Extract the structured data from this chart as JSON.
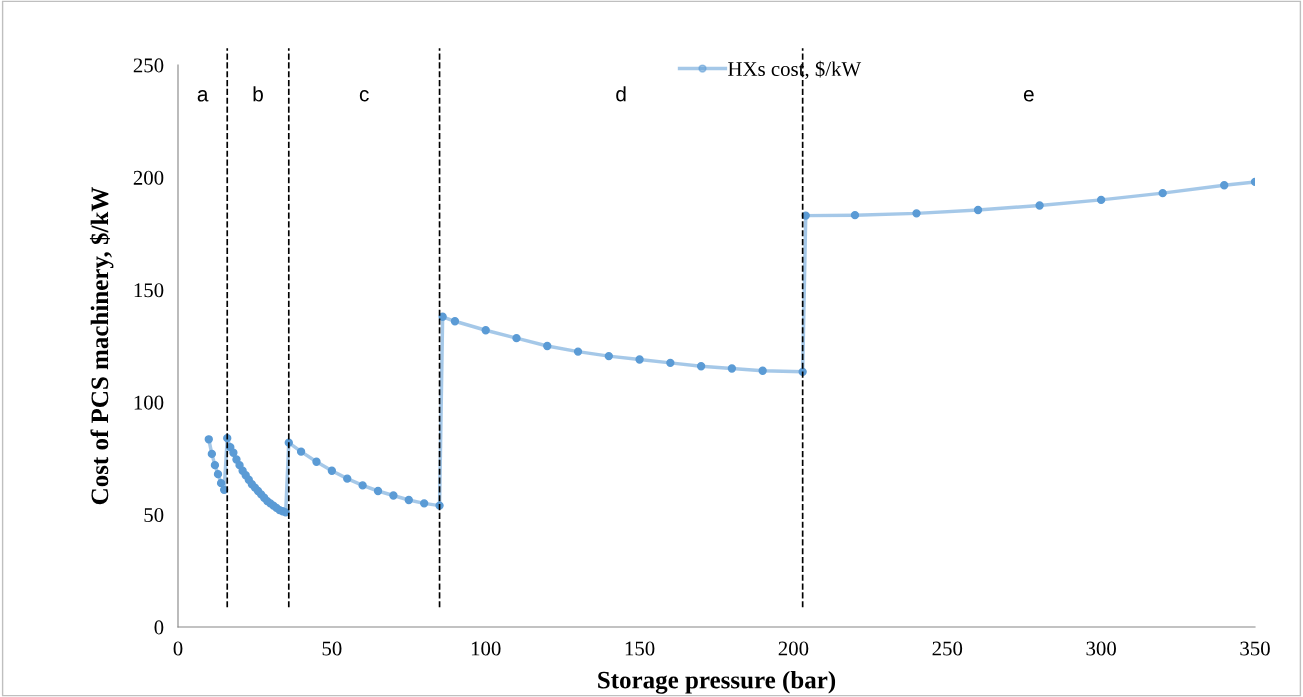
{
  "chart_data": {
    "type": "line",
    "xlabel": "Storage pressure (bar)",
    "ylabel": "Cost of PCS machinery, $/kW",
    "x": [
      10,
      11,
      12,
      13,
      14,
      15,
      16,
      17,
      18,
      19,
      20,
      21,
      22,
      23,
      24,
      25,
      26,
      27,
      28,
      29,
      30,
      31,
      32,
      33,
      34,
      35,
      36,
      40,
      45,
      50,
      55,
      60,
      65,
      70,
      75,
      80,
      85,
      86,
      90,
      100,
      110,
      120,
      130,
      140,
      150,
      160,
      170,
      180,
      190,
      203,
      204,
      220,
      240,
      260,
      280,
      300,
      320,
      340,
      350
    ],
    "series": [
      {
        "name": "HXs cost, $/kW",
        "color": "#5b9bd5",
        "values": [
          83.5,
          77,
          72,
          68,
          64,
          61,
          84,
          80,
          77.5,
          74.5,
          72,
          69.5,
          67.5,
          65.5,
          63.5,
          62,
          60.5,
          59,
          57.5,
          56,
          55,
          54,
          53,
          52,
          51.5,
          51,
          82,
          78,
          73.5,
          69.5,
          66,
          63,
          60.5,
          58.5,
          56.5,
          55,
          54,
          138,
          136,
          132,
          128.5,
          125,
          122.5,
          120.5,
          119,
          117.5,
          116,
          115,
          114,
          113.5,
          183,
          183.2,
          184,
          185.5,
          187.5,
          190,
          193,
          196.5,
          198
        ]
      }
    ],
    "xlim": [
      0,
      350
    ],
    "xticks": [
      0,
      50,
      100,
      150,
      200,
      250,
      300,
      350
    ],
    "ylim": [
      0,
      250
    ],
    "yticks": [
      0,
      50,
      100,
      150,
      200,
      250
    ],
    "marker": "circle",
    "line_style": "solid",
    "grid": false,
    "legend": "top",
    "ref_lines": [
      {
        "axis": "x",
        "value": 16,
        "color": "#000000",
        "line_style": "dashed"
      },
      {
        "axis": "x",
        "value": 36,
        "color": "#000000",
        "line_style": "dashed"
      },
      {
        "axis": "x",
        "value": 85,
        "color": "#000000",
        "line_style": "dashed"
      },
      {
        "axis": "x",
        "value": 203,
        "color": "#000000",
        "line_style": "dashed"
      }
    ],
    "annotations": [
      "a",
      "b",
      "c",
      "d",
      "e"
    ]
  }
}
